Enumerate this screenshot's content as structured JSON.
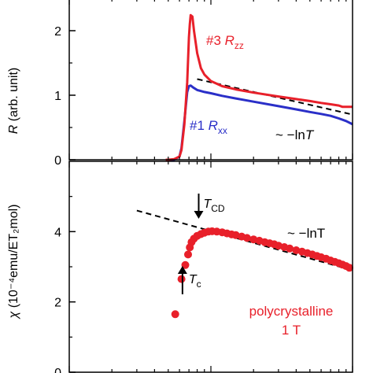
{
  "chart_data": [
    {
      "type": "line",
      "xscale": "log",
      "xlim": [
        1,
        100
      ],
      "ylim": [
        0,
        2.5
      ],
      "yticks": [
        0,
        1,
        2
      ],
      "ylabel": "R (arb. unit)",
      "series": [
        {
          "name": "#3 R_zz",
          "label_main": "#3 R",
          "label_sub": "zz",
          "color": "#e8202a",
          "x": [
            4.8,
            5.0,
            5.5,
            6.0,
            6.2,
            6.5,
            6.8,
            7.0,
            7.1,
            7.2,
            7.4,
            7.6,
            8.0,
            8.5,
            9.0,
            10,
            12,
            15,
            20,
            30,
            40,
            50,
            60,
            70,
            80,
            85,
            90,
            100
          ],
          "y": [
            0.0,
            0.0,
            0.01,
            0.05,
            0.15,
            0.55,
            1.2,
            1.9,
            2.1,
            2.24,
            2.22,
            2.0,
            1.65,
            1.42,
            1.32,
            1.22,
            1.14,
            1.09,
            1.04,
            0.98,
            0.94,
            0.91,
            0.88,
            0.86,
            0.84,
            0.82,
            0.82,
            0.82
          ]
        },
        {
          "name": "#1 R_xx",
          "label_main": "#1 R",
          "label_sub": "xx",
          "color": "#2a2fc8",
          "x": [
            5.0,
            5.5,
            6.0,
            6.2,
            6.5,
            6.8,
            7.0,
            7.2,
            7.5,
            8.0,
            9.0,
            10,
            12,
            15,
            20,
            30,
            40,
            50,
            60,
            70,
            80,
            90,
            100
          ],
          "y": [
            0.0,
            0.0,
            0.05,
            0.18,
            0.6,
            1.05,
            1.14,
            1.15,
            1.12,
            1.08,
            1.05,
            1.03,
            0.99,
            0.95,
            0.9,
            0.83,
            0.78,
            0.74,
            0.71,
            0.68,
            0.64,
            0.6,
            0.55
          ]
        }
      ],
      "fit": {
        "label": "~ −lnT",
        "x": [
          8,
          100
        ],
        "y": [
          1.25,
          0.7
        ]
      }
    },
    {
      "type": "scatter",
      "xscale": "log",
      "xlim": [
        1,
        100
      ],
      "xticks": [
        1,
        10,
        100
      ],
      "ylim": [
        0,
        6
      ],
      "yticks": [
        0,
        2,
        4
      ],
      "ylabel": "χ (10⁻⁴emu/ET₂mol)",
      "series": [
        {
          "name": "polycrystalline 1 T",
          "color": "#e8202a",
          "x": [
            5.6,
            6.2,
            6.6,
            6.9,
            7.1,
            7.3,
            7.6,
            8.0,
            8.5,
            9.0,
            9.6,
            10.2,
            11,
            12,
            13,
            14,
            15,
            16.5,
            18,
            20,
            22,
            24,
            26,
            28,
            30,
            33,
            36,
            40,
            44,
            48,
            52,
            56,
            60,
            65,
            70,
            75,
            80,
            85,
            90,
            95
          ],
          "y": [
            1.65,
            2.65,
            3.05,
            3.35,
            3.55,
            3.7,
            3.8,
            3.88,
            3.93,
            3.97,
            4.0,
            4.01,
            4.0,
            3.98,
            3.95,
            3.92,
            3.9,
            3.86,
            3.82,
            3.78,
            3.74,
            3.7,
            3.67,
            3.64,
            3.6,
            3.56,
            3.52,
            3.47,
            3.43,
            3.39,
            3.35,
            3.31,
            3.27,
            3.23,
            3.18,
            3.14,
            3.1,
            3.06,
            3.02,
            2.97
          ]
        }
      ],
      "fit": {
        "label": "~ −lnT",
        "x": [
          3,
          100
        ],
        "y": [
          4.6,
          2.9
        ]
      },
      "annotations": [
        {
          "text": "T_CD",
          "main": "T",
          "sub": "CD",
          "arrow": "down",
          "x": 8.2
        },
        {
          "text": "T_c",
          "main": "T",
          "sub": "c",
          "arrow": "up",
          "x": 6.3
        }
      ],
      "legend": [
        "polycrystalline",
        "1 T"
      ]
    }
  ]
}
